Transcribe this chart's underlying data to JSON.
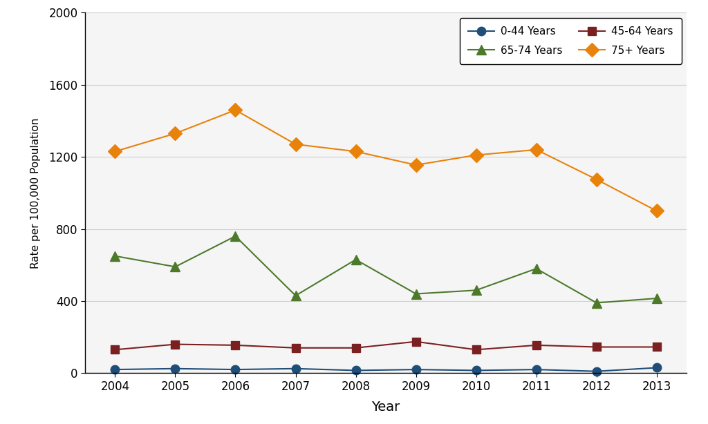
{
  "years": [
    2004,
    2005,
    2006,
    2007,
    2008,
    2009,
    2010,
    2011,
    2012,
    2013
  ],
  "series": {
    "0-44 Years": {
      "values": [
        20,
        25,
        20,
        25,
        15,
        20,
        15,
        20,
        10,
        30
      ],
      "color": "#1f4e79",
      "marker": "o",
      "label": "0-44 Years",
      "markersize": 9,
      "linewidth": 1.5
    },
    "45-64 Years": {
      "values": [
        130,
        160,
        155,
        140,
        140,
        175,
        130,
        155,
        145,
        145
      ],
      "color": "#7b2020",
      "marker": "s",
      "label": "45-64 Years",
      "markersize": 9,
      "linewidth": 1.5
    },
    "65-74 Years": {
      "values": [
        650,
        590,
        760,
        430,
        630,
        440,
        460,
        580,
        390,
        415
      ],
      "color": "#4d7a2a",
      "marker": "^",
      "label": "65-74 Years",
      "markersize": 10,
      "linewidth": 1.5
    },
    "75+ Years": {
      "values": [
        1230,
        1330,
        1460,
        1270,
        1230,
        1155,
        1210,
        1240,
        1075,
        900
      ],
      "color": "#e8820a",
      "marker": "D",
      "label": "75+ Years",
      "markersize": 10,
      "linewidth": 1.5
    }
  },
  "xlabel": "Year",
  "ylabel": "Rate per 100,000 Population",
  "ylim": [
    0,
    2000
  ],
  "yticks": [
    0,
    400,
    800,
    1200,
    1600,
    2000
  ],
  "ytick_labels": [
    "0",
    "400",
    "800",
    "1200",
    "1600",
    "2000"
  ],
  "background_color": "#ffffff",
  "plot_bg_color": "#f5f5f5",
  "grid_color": "#d0d0d0",
  "series_order": [
    "0-44 Years",
    "45-64 Years",
    "65-74 Years",
    "75+ Years"
  ],
  "legend_order": [
    "0-44 Years",
    "65-74 Years",
    "45-64 Years",
    "75+ Years"
  ]
}
